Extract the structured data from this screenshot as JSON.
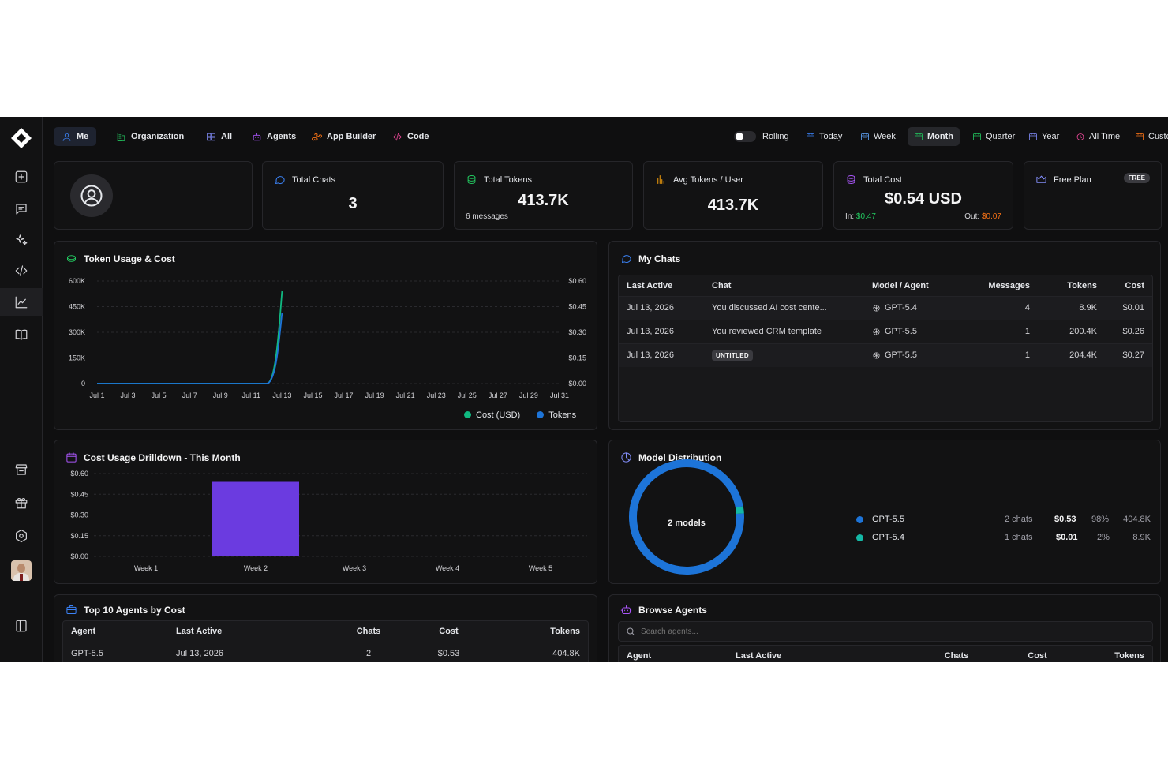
{
  "nav": {
    "tabs": [
      {
        "label": "Me",
        "icon": "user-icon"
      },
      {
        "label": "Organization",
        "icon": "building-icon"
      },
      {
        "label": "All",
        "icon": "grid-icon"
      },
      {
        "label": "Agents",
        "icon": "robot-icon"
      },
      {
        "label": "App Builder",
        "icon": "puzzle-icon"
      },
      {
        "label": "Code",
        "icon": "code-icon"
      }
    ],
    "rolling_label": "Rolling",
    "ranges": [
      "Today",
      "Week",
      "Month",
      "Quarter",
      "Year",
      "All Time",
      "Custom"
    ],
    "active_range": "Month"
  },
  "stats": {
    "total_chats": {
      "label": "Total Chats",
      "value": "3"
    },
    "total_tokens": {
      "label": "Total Tokens",
      "value": "413.7K",
      "sub": "6 messages"
    },
    "avg_tokens": {
      "label": "Avg Tokens / User",
      "value": "413.7K"
    },
    "total_cost": {
      "label": "Total Cost",
      "value": "$0.54 USD",
      "in_label": "In:",
      "in_value": "$0.47",
      "out_label": "Out:",
      "out_value": "$0.07"
    },
    "plan": {
      "label": "Free Plan",
      "badge": "FREE"
    }
  },
  "token_usage": {
    "title": "Token Usage & Cost",
    "legend_cost": "Cost (USD)",
    "legend_tokens": "Tokens"
  },
  "chart_data": [
    {
      "type": "line",
      "title": "Token Usage & Cost",
      "x": [
        "Jul 1",
        "Jul 3",
        "Jul 5",
        "Jul 7",
        "Jul 9",
        "Jul 11",
        "Jul 13",
        "Jul 15",
        "Jul 17",
        "Jul 19",
        "Jul 21",
        "Jul 23",
        "Jul 25",
        "Jul 27",
        "Jul 29",
        "Jul 31"
      ],
      "y_left_ticks": [
        "0",
        "150K",
        "300K",
        "450K",
        "600K"
      ],
      "y_right_ticks": [
        "$0.00",
        "$0.15",
        "$0.30",
        "$0.45",
        "$0.60"
      ],
      "ylim_left": [
        0,
        600000
      ],
      "ylim_right": [
        0,
        0.6
      ],
      "series": [
        {
          "name": "Cost (USD)",
          "color": "#10b981",
          "axis": "right",
          "points": [
            [
              "Jul 1",
              0
            ],
            [
              "Jul 12",
              0
            ],
            [
              "Jul 13",
              0.54
            ]
          ]
        },
        {
          "name": "Tokens",
          "color": "#1d74d8",
          "axis": "left",
          "points": [
            [
              "Jul 1",
              0
            ],
            [
              "Jul 12",
              0
            ],
            [
              "Jul 13",
              413700
            ]
          ]
        }
      ],
      "grid": true,
      "legend": "bottom-right"
    },
    {
      "type": "bar",
      "title": "Cost Usage Drilldown - This Month",
      "categories": [
        "Week 1",
        "Week 2",
        "Week 3",
        "Week 4",
        "Week 5"
      ],
      "values": [
        0,
        0.54,
        0,
        0,
        0
      ],
      "y_ticks": [
        "$0.00",
        "$0.15",
        "$0.30",
        "$0.45",
        "$0.60"
      ],
      "ylim": [
        0,
        0.6
      ],
      "color": "#6b3be0"
    },
    {
      "type": "pie",
      "title": "Model Distribution",
      "center_label": "2 models",
      "slices": [
        {
          "name": "GPT-5.5",
          "value": 98,
          "color": "#1d74d8"
        },
        {
          "name": "GPT-5.4",
          "value": 2,
          "color": "#14b8a6"
        }
      ]
    }
  ],
  "my_chats": {
    "title": "My Chats",
    "columns": [
      "Last Active",
      "Chat",
      "Model / Agent",
      "Messages",
      "Tokens",
      "Cost"
    ],
    "rows": [
      {
        "last_active": "Jul 13, 2026",
        "chat": "You discussed AI cost cente...",
        "badge": "",
        "model": "GPT-5.4",
        "messages": "4",
        "tokens": "8.9K",
        "cost": "$0.01"
      },
      {
        "last_active": "Jul 13, 2026",
        "chat": "You reviewed CRM template",
        "badge": "",
        "model": "GPT-5.5",
        "messages": "1",
        "tokens": "200.4K",
        "cost": "$0.26"
      },
      {
        "last_active": "Jul 13, 2026",
        "chat": "",
        "badge": "UNTITLED",
        "model": "GPT-5.5",
        "messages": "1",
        "tokens": "204.4K",
        "cost": "$0.27"
      }
    ]
  },
  "cost_drilldown": {
    "title": "Cost Usage Drilldown - This Month"
  },
  "model_distribution": {
    "title": "Model Distribution",
    "center_label": "2 models",
    "rows": [
      {
        "name": "GPT-5.5",
        "color": "#1d74d8",
        "chats": "2 chats",
        "cost": "$0.53",
        "pct": "98%",
        "tokens": "404.8K"
      },
      {
        "name": "GPT-5.4",
        "color": "#14b8a6",
        "chats": "1 chats",
        "cost": "$0.01",
        "pct": "2%",
        "tokens": "8.9K"
      }
    ]
  },
  "top_agents": {
    "title": "Top 10 Agents by Cost",
    "columns": [
      "Agent",
      "Last Active",
      "Chats",
      "Cost",
      "Tokens"
    ],
    "rows": [
      {
        "agent": "GPT-5.5",
        "last_active": "Jul 13, 2026",
        "chats": "2",
        "cost": "$0.53",
        "tokens": "404.8K"
      }
    ]
  },
  "browse_agents": {
    "title": "Browse Agents",
    "search_placeholder": "Search agents...",
    "columns": [
      "Agent",
      "Last Active",
      "Chats",
      "Cost",
      "Tokens"
    ]
  }
}
